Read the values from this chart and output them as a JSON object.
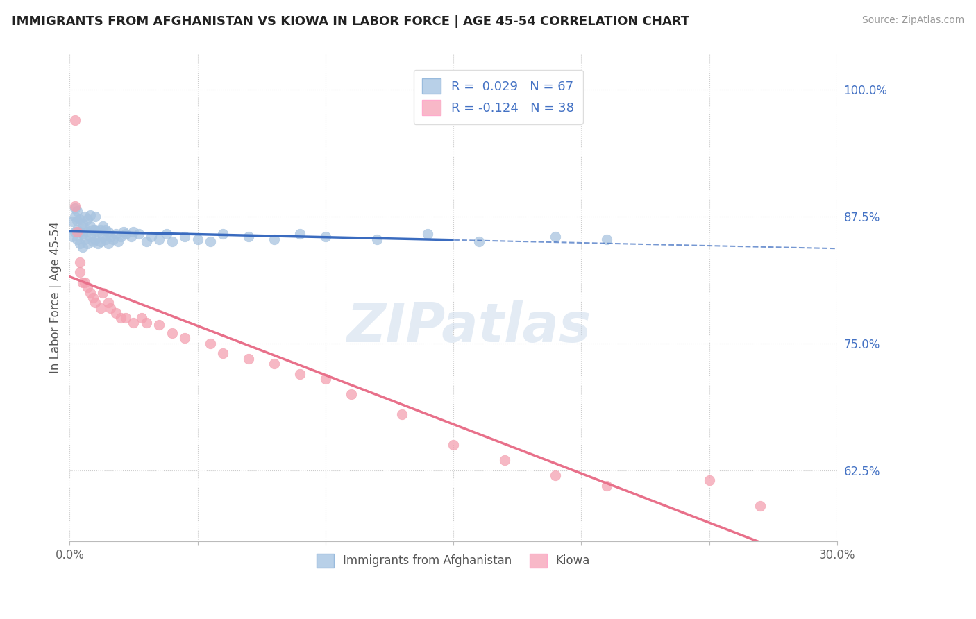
{
  "title": "IMMIGRANTS FROM AFGHANISTAN VS KIOWA IN LABOR FORCE | AGE 45-54 CORRELATION CHART",
  "source_text": "Source: ZipAtlas.com",
  "ylabel": "In Labor Force | Age 45-54",
  "xlim": [
    0.0,
    0.3
  ],
  "ylim": [
    0.555,
    1.035
  ],
  "xtick_positions": [
    0.0,
    0.05,
    0.1,
    0.15,
    0.2,
    0.25,
    0.3
  ],
  "xticklabels": [
    "0.0%",
    "",
    "",
    "",
    "",
    "",
    "30.0%"
  ],
  "ytick_positions": [
    0.625,
    0.75,
    0.875,
    1.0
  ],
  "ytick_labels": [
    "62.5%",
    "75.0%",
    "87.5%",
    "100.0%"
  ],
  "afghanistan_R": 0.029,
  "afghanistan_N": 67,
  "kiowa_R": -0.124,
  "kiowa_N": 38,
  "afghanistan_color": "#a8c4e0",
  "kiowa_color": "#f4a0b0",
  "afghanistan_line_color": "#3a6bbf",
  "kiowa_line_color": "#e8708a",
  "legend_afghanistan_fill": "#b8d0e8",
  "legend_kiowa_fill": "#f8b8c8",
  "watermark": "ZIPatlas",
  "afghanistan_x": [
    0.001,
    0.001,
    0.002,
    0.002,
    0.002,
    0.003,
    0.003,
    0.003,
    0.003,
    0.004,
    0.004,
    0.004,
    0.005,
    0.005,
    0.005,
    0.006,
    0.006,
    0.006,
    0.007,
    0.007,
    0.007,
    0.008,
    0.008,
    0.008,
    0.009,
    0.009,
    0.01,
    0.01,
    0.01,
    0.011,
    0.011,
    0.012,
    0.012,
    0.013,
    0.013,
    0.014,
    0.014,
    0.015,
    0.015,
    0.016,
    0.017,
    0.018,
    0.019,
    0.02,
    0.021,
    0.022,
    0.024,
    0.025,
    0.027,
    0.03,
    0.032,
    0.035,
    0.038,
    0.04,
    0.045,
    0.05,
    0.055,
    0.06,
    0.07,
    0.08,
    0.09,
    0.1,
    0.12,
    0.14,
    0.16,
    0.19,
    0.21
  ],
  "afghanistan_y": [
    0.855,
    0.87,
    0.86,
    0.875,
    0.883,
    0.852,
    0.862,
    0.871,
    0.88,
    0.848,
    0.86,
    0.872,
    0.845,
    0.858,
    0.868,
    0.852,
    0.863,
    0.875,
    0.848,
    0.86,
    0.872,
    0.855,
    0.865,
    0.876,
    0.85,
    0.862,
    0.852,
    0.862,
    0.875,
    0.848,
    0.86,
    0.85,
    0.862,
    0.855,
    0.865,
    0.852,
    0.862,
    0.848,
    0.86,
    0.855,
    0.852,
    0.858,
    0.85,
    0.855,
    0.86,
    0.858,
    0.855,
    0.86,
    0.858,
    0.85,
    0.855,
    0.852,
    0.858,
    0.85,
    0.855,
    0.852,
    0.85,
    0.858,
    0.855,
    0.852,
    0.858,
    0.855,
    0.852,
    0.858,
    0.85,
    0.855,
    0.852
  ],
  "kiowa_x": [
    0.002,
    0.003,
    0.004,
    0.005,
    0.006,
    0.007,
    0.008,
    0.009,
    0.01,
    0.012,
    0.013,
    0.015,
    0.016,
    0.018,
    0.02,
    0.022,
    0.025,
    0.028,
    0.03,
    0.035,
    0.04,
    0.045,
    0.055,
    0.06,
    0.07,
    0.08,
    0.09,
    0.1,
    0.11,
    0.13,
    0.15,
    0.17,
    0.19,
    0.21,
    0.25,
    0.27,
    0.002,
    0.004
  ],
  "kiowa_y": [
    0.97,
    0.86,
    0.82,
    0.81,
    0.81,
    0.805,
    0.8,
    0.795,
    0.79,
    0.785,
    0.8,
    0.79,
    0.785,
    0.78,
    0.775,
    0.775,
    0.77,
    0.775,
    0.77,
    0.768,
    0.76,
    0.755,
    0.75,
    0.74,
    0.735,
    0.73,
    0.72,
    0.715,
    0.7,
    0.68,
    0.65,
    0.635,
    0.62,
    0.61,
    0.615,
    0.59,
    0.885,
    0.83
  ]
}
